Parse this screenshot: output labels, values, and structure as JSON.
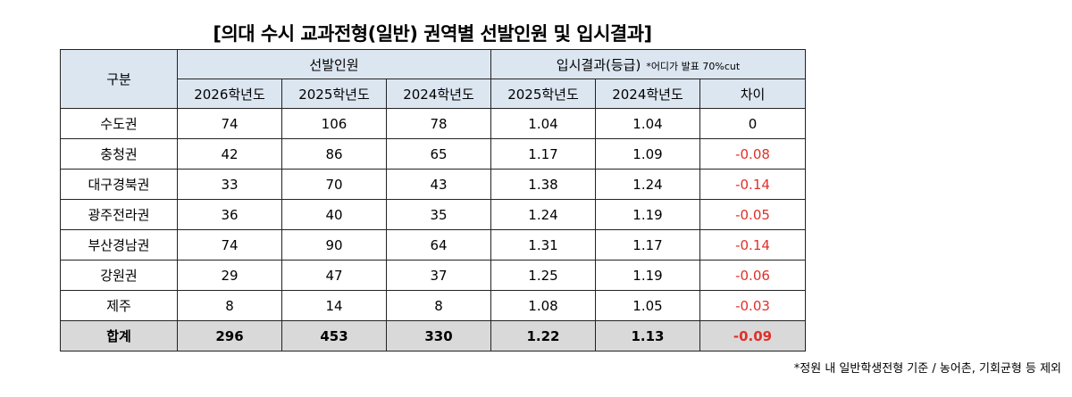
{
  "title": "[의대 수시 교과전형(일반) 권역별 선발인원 및 입시결과]",
  "header": {
    "region_label": "구분",
    "group_quota": "선발인원",
    "group_result": "입시결과(등급)",
    "group_result_note": "*어디가 발표 70%cut",
    "columns": [
      "2026학년도",
      "2025학년도",
      "2024학년도",
      "2025학년도",
      "2024학년도",
      "차이"
    ]
  },
  "rows": [
    {
      "region": "수도권",
      "q2026": "74",
      "q2025": "106",
      "q2024": "78",
      "r2025": "1.04",
      "r2024": "1.04",
      "diff": "0"
    },
    {
      "region": "충청권",
      "q2026": "42",
      "q2025": "86",
      "q2024": "65",
      "r2025": "1.17",
      "r2024": "1.09",
      "diff": "-0.08"
    },
    {
      "region": "대구경북권",
      "q2026": "33",
      "q2025": "70",
      "q2024": "43",
      "r2025": "1.38",
      "r2024": "1.24",
      "diff": "-0.14"
    },
    {
      "region": "광주전라권",
      "q2026": "36",
      "q2025": "40",
      "q2024": "35",
      "r2025": "1.24",
      "r2024": "1.19",
      "diff": "-0.05"
    },
    {
      "region": "부산경남권",
      "q2026": "74",
      "q2025": "90",
      "q2024": "64",
      "r2025": "1.31",
      "r2024": "1.17",
      "diff": "-0.14"
    },
    {
      "region": "강원권",
      "q2026": "29",
      "q2025": "47",
      "q2024": "37",
      "r2025": "1.25",
      "r2024": "1.19",
      "diff": "-0.06"
    },
    {
      "region": "제주",
      "q2026": "8",
      "q2025": "14",
      "q2024": "8",
      "r2025": "1.08",
      "r2024": "1.05",
      "diff": "-0.03"
    }
  ],
  "total": {
    "region": "합계",
    "q2026": "296",
    "q2025": "453",
    "q2024": "330",
    "r2025": "1.22",
    "r2024": "1.13",
    "diff": "-0.09"
  },
  "footnote": "*정원 내 일반학생전형 기준 / 농어촌, 기회균형 등 제외",
  "colors": {
    "header_bg": "#dce6f1",
    "total_bg": "#d9d9d9",
    "negative_text": "#e0302a"
  }
}
